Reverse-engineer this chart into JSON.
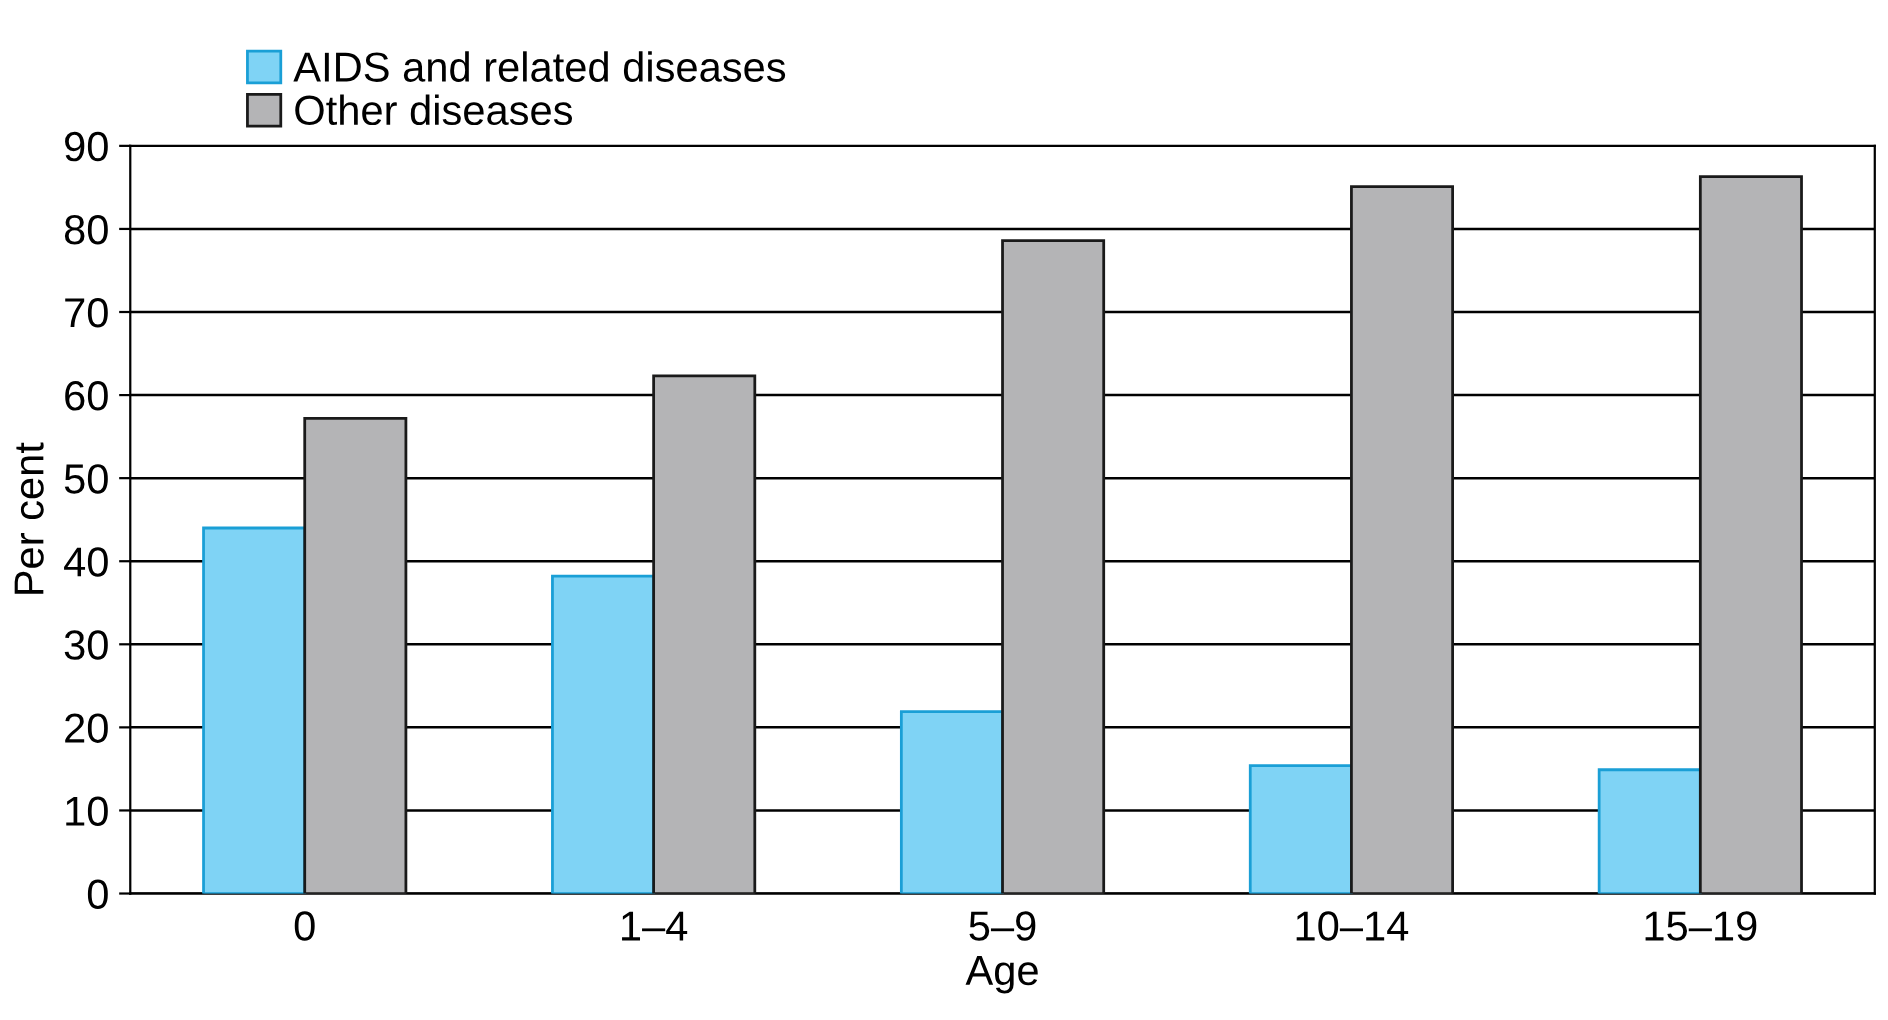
{
  "chart_data": {
    "type": "bar",
    "xlabel": "Age",
    "ylabel": "Per cent",
    "categories": [
      "0",
      "1–4",
      "5–9",
      "10–14",
      "15–19"
    ],
    "series": [
      {
        "name": "AIDS and related diseases",
        "color": "#7fd3f5",
        "values": [
          44,
          38.2,
          21.9,
          15.4,
          14.9
        ]
      },
      {
        "name": "Other diseases",
        "color": "#b4b4b6",
        "values": [
          57.2,
          62.3,
          78.6,
          85.1,
          86.3
        ]
      }
    ],
    "ylim": [
      0,
      90
    ],
    "yticks": [
      0,
      10,
      20,
      30,
      40,
      50,
      60,
      70,
      80,
      90
    ],
    "grid": "y",
    "legend": "top left"
  }
}
